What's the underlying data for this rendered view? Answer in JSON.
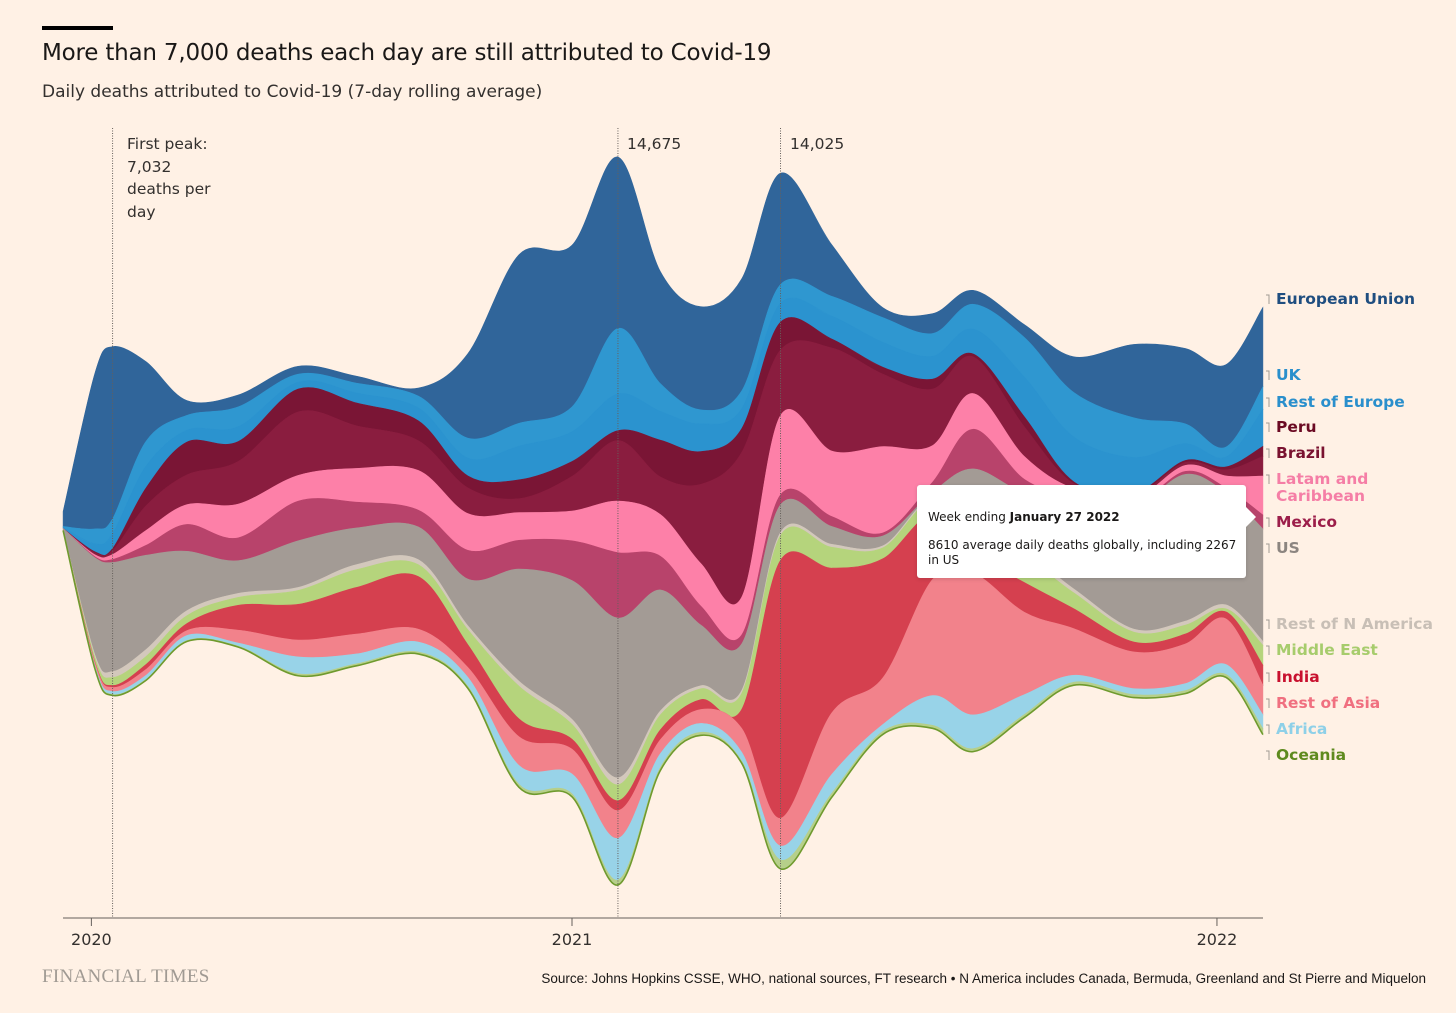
{
  "header": {
    "title": "More than 7,000 deaths each day are still attributed to Covid-19",
    "subtitle": "Daily deaths attributed to Covid-19 (7-day rolling average)"
  },
  "annotations": {
    "first_peak": {
      "date": "2020-04-16",
      "lines": [
        "First peak:",
        "7,032",
        "deaths per",
        "day"
      ]
    },
    "peak_2": {
      "date": "2021-01-27",
      "label": "14,675"
    },
    "peak_3": {
      "date": "2021-04-29",
      "label": "14,025"
    }
  },
  "tooltip": {
    "prefix": "Week ending ",
    "date": "January 27 2022",
    "text": "8610 average daily deaths globally, including 2267 in US"
  },
  "footer": {
    "brand": "FINANCIAL TIMES",
    "source": "Source: Johns Hopkins CSSE, WHO, national sources, FT research • N America includes Canada, Bermuda, Greenland and St Pierre and Miquelon"
  },
  "chart_data": {
    "type": "area",
    "stacking": "streamgraph",
    "title": "More than 7,000 deaths each day are still attributed to Covid-19",
    "subtitle": "Daily deaths attributed to Covid-19 (7-day rolling average)",
    "xlabel": "",
    "ylabel": "Daily deaths",
    "legend_placement": "right",
    "grid": false,
    "x_ticks": [
      {
        "label": "2020",
        "date": "2020-04-04"
      },
      {
        "label": "2021",
        "date": "2021-01-01"
      },
      {
        "label": "2022",
        "date": "2022-01-01"
      }
    ],
    "dates": [
      "2020-03-19",
      "2020-04-06",
      "2020-04-16",
      "2020-05-05",
      "2020-05-28",
      "2020-06-26",
      "2020-07-30",
      "2020-09-01",
      "2020-10-06",
      "2020-11-03",
      "2020-12-02",
      "2021-01-01",
      "2021-01-27",
      "2021-02-20",
      "2021-03-15",
      "2021-04-07",
      "2021-04-29",
      "2021-05-28",
      "2021-06-26",
      "2021-07-24",
      "2021-08-16",
      "2021-09-14",
      "2021-10-12",
      "2021-11-15",
      "2021-12-14",
      "2022-01-06",
      "2022-01-27"
    ],
    "series": [
      {
        "name": "European Union",
        "color": "#30659a",
        "label_color": "#1f4e80",
        "values": [
          300,
          3140,
          3472,
          1600,
          300,
          240,
          160,
          140,
          160,
          1700,
          3400,
          3260,
          3455,
          2260,
          2080,
          2260,
          2245,
          1040,
          200,
          400,
          280,
          260,
          720,
          1480,
          1520,
          1660,
          1600
        ]
      },
      {
        "name": "UK",
        "color": "#2f97d0",
        "label_color": "#2a8fcc",
        "values": [
          20,
          300,
          300,
          500,
          300,
          400,
          160,
          200,
          240,
          400,
          460,
          500,
          1320,
          560,
          280,
          360,
          380,
          400,
          500,
          460,
          500,
          800,
          900,
          800,
          400,
          200,
          460
        ]
      },
      {
        "name": "Rest of Europe",
        "color": "#2b93cf",
        "label_color": "#2a8fcc",
        "values": [
          20,
          160,
          300,
          440,
          240,
          300,
          140,
          200,
          260,
          360,
          680,
          600,
          740,
          580,
          560,
          400,
          380,
          460,
          500,
          460,
          500,
          800,
          900,
          720,
          340,
          200,
          740
        ]
      },
      {
        "name": "Peru",
        "color": "#7a1535",
        "label_color": "#6b0a23",
        "values": [
          0,
          20,
          40,
          360,
          660,
          400,
          460,
          460,
          400,
          240,
          380,
          300,
          200,
          740,
          660,
          480,
          560,
          180,
          140,
          200,
          60,
          200,
          40,
          40,
          40,
          60,
          200
        ]
      },
      {
        "name": "Brazil",
        "color": "#8a1d3f",
        "label_color": "#7a1230",
        "values": [
          0,
          40,
          80,
          500,
          600,
          860,
          1280,
          860,
          600,
          520,
          280,
          700,
          1220,
          760,
          1600,
          2920,
          1320,
          2080,
          1460,
          1140,
          740,
          600,
          100,
          60,
          60,
          120,
          400
        ]
      },
      {
        "name": "Latam and Caribbean",
        "color": "#fd80a8",
        "label_color": "#f57ea6",
        "values": [
          0,
          40,
          100,
          300,
          400,
          680,
          520,
          680,
          800,
          740,
          560,
          600,
          1040,
          840,
          860,
          760,
          1600,
          1320,
          1740,
          740,
          720,
          460,
          160,
          120,
          120,
          240,
          783
        ]
      },
      {
        "name": "Mexico",
        "color": "#b8436b",
        "label_color": "#9c1e4a",
        "values": [
          0,
          20,
          60,
          200,
          540,
          460,
          800,
          520,
          340,
          580,
          580,
          800,
          1320,
          680,
          380,
          180,
          200,
          200,
          60,
          200,
          800,
          280,
          60,
          40,
          60,
          100,
          280
        ]
      },
      {
        "name": "US",
        "color": "#a39b95",
        "label_color": "#8c8580",
        "values": [
          40,
          1960,
          2200,
          1900,
          1200,
          660,
          940,
          740,
          660,
          940,
          2260,
          2800,
          3220,
          2440,
          1220,
          940,
          560,
          360,
          200,
          120,
          1400,
          1200,
          1800,
          2480,
          2960,
          2260,
          2267
        ]
      },
      {
        "name": "Rest of N America",
        "color": "#d3c8bc",
        "label_color": "#c8bfb6",
        "values": [
          0,
          60,
          120,
          140,
          100,
          80,
          60,
          100,
          100,
          80,
          100,
          100,
          140,
          80,
          60,
          60,
          60,
          60,
          40,
          40,
          100,
          100,
          80,
          60,
          80,
          80,
          80
        ]
      },
      {
        "name": "Middle East",
        "color": "#b5d47c",
        "label_color": "#a7cc6c",
        "values": [
          0,
          80,
          160,
          160,
          160,
          160,
          280,
          360,
          240,
          300,
          660,
          300,
          320,
          300,
          220,
          320,
          500,
          420,
          220,
          280,
          200,
          500,
          320,
          200,
          180,
          60,
          400
        ]
      },
      {
        "name": "India",
        "color": "#d5404f",
        "label_color": "#c8102e",
        "values": [
          0,
          20,
          40,
          100,
          140,
          500,
          720,
          940,
          1060,
          460,
          360,
          200,
          200,
          200,
          200,
          380,
          5200,
          2920,
          2400,
          1320,
          400,
          600,
          400,
          200,
          200,
          140,
          400
        ]
      },
      {
        "name": "Rest of Asia",
        "color": "#f2828b",
        "label_color": "#f07080",
        "values": [
          0,
          60,
          80,
          120,
          100,
          260,
          340,
          400,
          260,
          200,
          580,
          500,
          560,
          280,
          280,
          480,
          560,
          1240,
          940,
          2340,
          2860,
          1660,
          940,
          740,
          800,
          920,
          600
        ]
      },
      {
        "name": "Africa",
        "color": "#98d3e8",
        "label_color": "#8ed0e8",
        "values": [
          0,
          40,
          60,
          80,
          100,
          60,
          340,
          200,
          200,
          180,
          380,
          400,
          840,
          280,
          180,
          180,
          280,
          380,
          140,
          600,
          680,
          400,
          140,
          120,
          140,
          200,
          280
        ]
      },
      {
        "name": "Oceania",
        "color": "#b6cf8a",
        "label_color": "#5e8a1e",
        "values": [
          0,
          20,
          20,
          20,
          20,
          20,
          40,
          40,
          40,
          40,
          60,
          60,
          100,
          60,
          60,
          40,
          180,
          80,
          60,
          60,
          60,
          60,
          60,
          60,
          60,
          60,
          120
        ]
      }
    ]
  }
}
